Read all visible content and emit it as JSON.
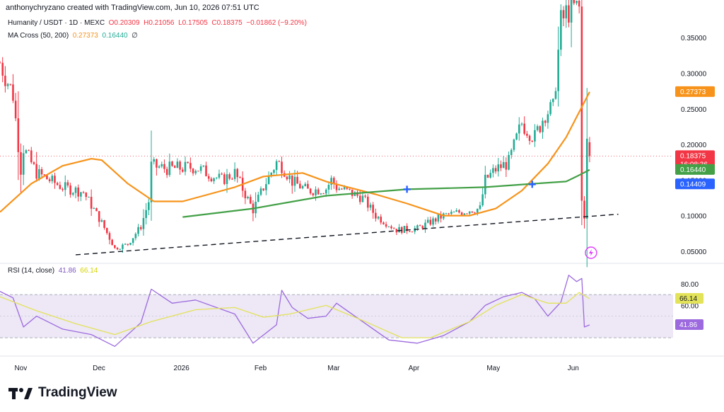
{
  "header": {
    "text": "anthonychryzano created with TradingView.com, Jun 10, 2026 07:51 UTC"
  },
  "legend": {
    "symbol": "Humanity / USDT · 1D · MEXC",
    "open": "O0.20309",
    "high": "H0.21056",
    "low": "L0.17505",
    "close": "C0.18375",
    "change": "−0.01862 (−9.20%)",
    "ma_label": "MA Cross (50, 200)",
    "ma_fast": "0.27373",
    "ma_slow": "0.16440",
    "ma_extra": "∅",
    "rsi_label": "RSI (14, close)",
    "rsi_value": "41.86",
    "rsi_ma": "66.14"
  },
  "colors": {
    "up": "#22ab94",
    "down": "#f23645",
    "ma_fast": "#f7931a",
    "ma_slow": "#43a047",
    "rsi_line": "#9c6ade",
    "rsi_ma": "#e3e35a",
    "rsi_band": "#ede7f6",
    "cross": "#2962ff"
  },
  "logo": {
    "text": "TradingView",
    "icon": "tradingview-logo-icon"
  },
  "chart_data": [
    {
      "type": "candlestick",
      "title": "Humanity / USDT · 1D · MEXC",
      "y_scale": "linear",
      "ylim": [
        0.035,
        0.385
      ],
      "y_ticks": [
        "0.35000",
        "0.30000",
        "0.25000",
        "0.20000",
        "0.15000",
        "0.10000",
        "0.05000"
      ],
      "y_tick_values": [
        0.35,
        0.3,
        0.25,
        0.2,
        0.15,
        0.1,
        0.05
      ],
      "x_ticks": [
        "Nov",
        "Dec",
        "2026",
        "Feb",
        "Mar",
        "Apr",
        "May",
        "Jun"
      ],
      "x_tick_dates": [
        "2025-11-01",
        "2025-12-01",
        "2026-01-01",
        "2026-02-01",
        "2026-03-01",
        "2026-04-01",
        "2026-05-01",
        "2026-06-01"
      ],
      "x_range": [
        "2025-10-27",
        "2026-07-12"
      ],
      "last_date": "2026-06-10",
      "price_labels": [
        {
          "text": "0.27373",
          "value": 0.27373,
          "color": "#f7931a"
        },
        {
          "text": "0.18375",
          "value": 0.18375,
          "color": "#f23645",
          "sub": "16:08:36"
        },
        {
          "text": "0.16440",
          "value": 0.1644,
          "color": "#43a047"
        },
        {
          "text": "0.14409",
          "value": 0.14409,
          "color": "#2962ff"
        }
      ],
      "close_series": {
        "dates": [
          "2025-10-27",
          "2025-11-01",
          "2025-11-04",
          "2025-11-05",
          "2025-11-10",
          "2025-11-20",
          "2025-11-28",
          "2025-12-05",
          "2025-12-10",
          "2025-12-15",
          "2025-12-20",
          "2025-12-23",
          "2025-12-24",
          "2025-12-30",
          "2026-01-10",
          "2026-01-20",
          "2026-01-25",
          "2026-02-01",
          "2026-02-05",
          "2026-02-10",
          "2026-02-12",
          "2026-02-16",
          "2026-02-22",
          "2026-03-01",
          "2026-03-03",
          "2026-03-05",
          "2026-03-15",
          "2026-03-20",
          "2026-03-28",
          "2026-04-05",
          "2026-04-15",
          "2026-04-25",
          "2026-04-29",
          "2026-05-01",
          "2026-05-05",
          "2026-05-10",
          "2026-05-15",
          "2026-05-20",
          "2026-05-24",
          "2026-05-27",
          "2026-05-30",
          "2026-06-02",
          "2026-06-06",
          "2026-06-07",
          "2026-06-08",
          "2026-06-09",
          "2026-06-10"
        ],
        "values": [
          0.315,
          0.27,
          0.165,
          0.195,
          0.16,
          0.14,
          0.133,
          0.09,
          0.054,
          0.06,
          0.085,
          0.12,
          0.17,
          0.166,
          0.168,
          0.15,
          0.16,
          0.108,
          0.14,
          0.175,
          0.17,
          0.148,
          0.135,
          0.138,
          0.15,
          0.14,
          0.125,
          0.1,
          0.08,
          0.082,
          0.1,
          0.108,
          0.11,
          0.15,
          0.165,
          0.175,
          0.23,
          0.21,
          0.245,
          0.25,
          0.37,
          0.39,
          0.39,
          0.12,
          0.1,
          0.203,
          0.18375
        ]
      }
    },
    {
      "type": "line",
      "name": "MA Cross (50, 200)",
      "series": [
        {
          "name": "MA 50",
          "color": "#f7931a",
          "dates": [
            "2025-10-27",
            "2025-11-08",
            "2025-11-20",
            "2025-12-01",
            "2025-12-05",
            "2025-12-15",
            "2025-12-25",
            "2026-01-05",
            "2026-01-15",
            "2026-01-25",
            "2026-02-05",
            "2026-02-20",
            "2026-03-01",
            "2026-03-20",
            "2026-04-01",
            "2026-04-15",
            "2026-04-25",
            "2026-05-05",
            "2026-05-15",
            "2026-05-25",
            "2026-06-01",
            "2026-06-10"
          ],
          "values": [
            0.105,
            0.145,
            0.17,
            0.18,
            0.178,
            0.145,
            0.12,
            0.12,
            0.13,
            0.14,
            0.155,
            0.16,
            0.148,
            0.13,
            0.117,
            0.1,
            0.1,
            0.11,
            0.135,
            0.173,
            0.21,
            0.27373
          ]
        },
        {
          "name": "MA 200",
          "color": "#43a047",
          "dates": [
            "2026-01-05",
            "2026-02-01",
            "2026-03-01",
            "2026-04-01",
            "2026-05-01",
            "2026-05-20",
            "2026-06-01",
            "2026-06-05",
            "2026-06-10"
          ],
          "values": [
            0.098,
            0.11,
            0.128,
            0.137,
            0.14,
            0.145,
            0.148,
            0.155,
            0.1644
          ]
        }
      ],
      "cross_markers": [
        {
          "date": "2026-04-01",
          "value": 0.137
        },
        {
          "date": "2026-05-19",
          "value": 0.144
        }
      ],
      "trendline": {
        "start": {
          "date": "2025-11-25",
          "value": 0.045
        },
        "end": {
          "date": "2026-06-21",
          "value": 0.102
        }
      }
    },
    {
      "type": "line",
      "name": "RSI (14, close)",
      "ylim": [
        15,
        95
      ],
      "y_ticks": [
        "80.00",
        "60.00"
      ],
      "y_tick_values": [
        80,
        60
      ],
      "bands": [
        70,
        30
      ],
      "value_labels": [
        {
          "text": "66.14",
          "value": 66.14,
          "color": "#e3e35a"
        },
        {
          "text": "41.86",
          "value": 41.86,
          "color": "#9c6ade"
        }
      ],
      "series": [
        {
          "name": "RSI",
          "color": "#9c6ade",
          "dates": [
            "2025-10-27",
            "2025-11-01",
            "2025-11-05",
            "2025-11-10",
            "2025-11-20",
            "2025-12-01",
            "2025-12-10",
            "2025-12-20",
            "2025-12-24",
            "2026-01-01",
            "2026-01-10",
            "2026-01-25",
            "2026-02-01",
            "2026-02-10",
            "2026-02-12",
            "2026-02-16",
            "2026-02-22",
            "2026-03-01",
            "2026-03-05",
            "2026-03-15",
            "2026-03-25",
            "2026-04-05",
            "2026-04-15",
            "2026-04-25",
            "2026-05-01",
            "2026-05-08",
            "2026-05-15",
            "2026-05-20",
            "2026-05-25",
            "2026-05-30",
            "2026-06-02",
            "2026-06-05",
            "2026-06-07",
            "2026-06-08",
            "2026-06-10"
          ],
          "values": [
            73,
            67,
            40,
            50,
            38,
            33,
            22,
            44,
            75,
            62,
            65,
            52,
            25,
            42,
            74,
            58,
            48,
            50,
            62,
            45,
            28,
            25,
            32,
            45,
            60,
            68,
            72,
            66,
            50,
            63,
            88,
            82,
            85,
            40,
            41.86
          ]
        },
        {
          "name": "RSI MA",
          "color": "#e3e35a",
          "dates": [
            "2025-10-27",
            "2025-11-10",
            "2025-11-25",
            "2025-12-10",
            "2025-12-24",
            "2026-01-10",
            "2026-01-25",
            "2026-02-05",
            "2026-02-15",
            "2026-03-01",
            "2026-03-15",
            "2026-03-30",
            "2026-04-10",
            "2026-04-25",
            "2026-05-05",
            "2026-05-15",
            "2026-05-25",
            "2026-06-01",
            "2026-06-06",
            "2026-06-10"
          ],
          "values": [
            68,
            55,
            43,
            33,
            45,
            56,
            58,
            49,
            52,
            60,
            46,
            30,
            30,
            45,
            60,
            70,
            62,
            62,
            72,
            66.14
          ]
        }
      ]
    }
  ]
}
